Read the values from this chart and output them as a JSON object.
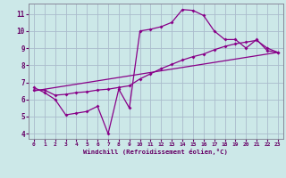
{
  "background_color": "#cce8e8",
  "line_color": "#880088",
  "grid_color": "#aabbcc",
  "xlabel": "Windchill (Refroidissement éolien,°C)",
  "xlabel_color": "#660066",
  "tick_color": "#660066",
  "xlim": [
    -0.5,
    23.5
  ],
  "ylim": [
    3.7,
    11.6
  ],
  "yticks": [
    4,
    5,
    6,
    7,
    8,
    9,
    10,
    11
  ],
  "xticks": [
    0,
    1,
    2,
    3,
    4,
    5,
    6,
    7,
    8,
    9,
    10,
    11,
    12,
    13,
    14,
    15,
    16,
    17,
    18,
    19,
    20,
    21,
    22,
    23
  ],
  "line1_x": [
    0,
    1,
    2,
    3,
    4,
    5,
    6,
    7,
    8,
    9,
    10,
    11,
    12,
    13,
    14,
    15,
    16,
    17,
    18,
    19,
    20,
    21,
    22,
    23
  ],
  "line1_y": [
    6.7,
    6.4,
    6.0,
    5.1,
    5.2,
    5.3,
    5.6,
    4.0,
    6.6,
    5.5,
    10.0,
    10.1,
    10.25,
    10.5,
    11.25,
    11.2,
    10.9,
    10.0,
    9.5,
    9.5,
    9.0,
    9.5,
    8.85,
    8.75
  ],
  "line2_x": [
    0,
    1,
    2,
    3,
    4,
    5,
    6,
    7,
    8,
    9,
    10,
    11,
    12,
    13,
    14,
    15,
    16,
    17,
    18,
    19,
    20,
    21,
    22,
    23
  ],
  "line2_y": [
    6.55,
    6.55,
    6.25,
    6.3,
    6.4,
    6.45,
    6.55,
    6.6,
    6.7,
    6.8,
    7.2,
    7.5,
    7.8,
    8.05,
    8.3,
    8.5,
    8.65,
    8.9,
    9.1,
    9.25,
    9.35,
    9.45,
    9.0,
    8.75
  ],
  "line3_x": [
    0,
    23
  ],
  "line3_y": [
    6.5,
    8.75
  ]
}
